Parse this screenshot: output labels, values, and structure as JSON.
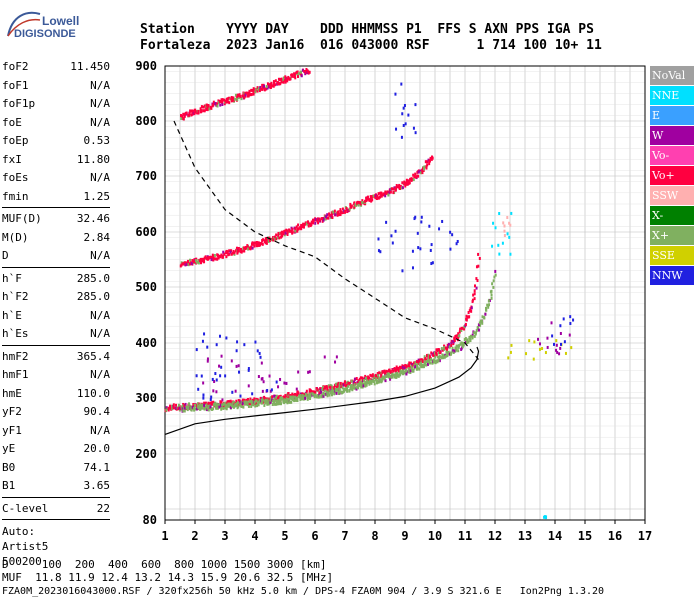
{
  "logo": {
    "line1": "Lowell",
    "line2": "DIGISONDE"
  },
  "header": {
    "row1": "Station    YYYY DAY    DDD HHMMSS P1  FFS S AXN PPS IGA PS",
    "row2": "Fortaleza  2023 Jan16  016 043000 RSF      1 714 100 10+ 11"
  },
  "params": [
    {
      "group": [
        {
          "k": "foF2",
          "v": "11.450"
        },
        {
          "k": "foF1",
          "v": "N/A"
        },
        {
          "k": "foF1p",
          "v": "N/A"
        },
        {
          "k": "foE",
          "v": "N/A"
        },
        {
          "k": "foEp",
          "v": "0.53"
        },
        {
          "k": "fxI",
          "v": "11.80"
        },
        {
          "k": "foEs",
          "v": "N/A"
        },
        {
          "k": "fmin",
          "v": "1.25"
        }
      ]
    },
    {
      "group": [
        {
          "k": "MUF(D)",
          "v": "32.46"
        },
        {
          "k": "M(D)",
          "v": "2.84"
        },
        {
          "k": "D",
          "v": "N/A"
        }
      ]
    },
    {
      "group": [
        {
          "k": "h`F",
          "v": "285.0"
        },
        {
          "k": "h`F2",
          "v": "285.0"
        },
        {
          "k": "h`E",
          "v": "N/A"
        },
        {
          "k": "h`Es",
          "v": "N/A"
        }
      ]
    },
    {
      "group": [
        {
          "k": "hmF2",
          "v": "365.4"
        },
        {
          "k": "hmF1",
          "v": "N/A"
        },
        {
          "k": "hmE",
          "v": "110.0"
        },
        {
          "k": "yF2",
          "v": "90.4"
        },
        {
          "k": "yF1",
          "v": "N/A"
        },
        {
          "k": "yE",
          "v": "20.0"
        },
        {
          "k": "B0",
          "v": "74.1"
        },
        {
          "k": "B1",
          "v": "3.65"
        }
      ]
    },
    {
      "group": [
        {
          "k": "C-level",
          "v": "22"
        }
      ]
    }
  ],
  "auto": [
    "Auto:",
    "Artist5",
    "500200"
  ],
  "legend": [
    {
      "label": "NoVal",
      "color": "#a0a0a0"
    },
    {
      "label": "NNE",
      "color": "#00e0ff"
    },
    {
      "label": "E",
      "color": "#3aa0ff"
    },
    {
      "label": "W",
      "color": "#a000a0"
    },
    {
      "label": "Vo-",
      "color": "#ff40b0"
    },
    {
      "label": "Vo+",
      "color": "#ff0040"
    },
    {
      "label": "SSW",
      "color": "#ffb0b0"
    },
    {
      "label": "X-",
      "color": "#008000"
    },
    {
      "label": "X+",
      "color": "#80b060"
    },
    {
      "label": "SSE",
      "color": "#d0d000"
    },
    {
      "label": "NNW",
      "color": "#2020e0"
    }
  ],
  "footer": {
    "row1": "D     100  200  400  600  800 1000 1500 3000 [km]",
    "row2": "MUF  11.8 11.9 12.4 13.2 14.3 15.9 20.6 32.5 [MHz]",
    "row3": "FZA0M_2023016043000.RSF / 320fx256h 50 kHz 5.0 km / DPS-4 FZA0M 904 / 3.9 S 321.6 E   Ion2Png 1.3.20"
  },
  "chart_data": {
    "type": "scatter",
    "x_ticks": [
      "1",
      "2",
      "3",
      "4",
      "5",
      "6",
      "7",
      "8",
      "9",
      "10",
      "11",
      "12",
      "13",
      "14",
      "15",
      "16",
      "17"
    ],
    "y_ticks": [
      "80",
      "200",
      "300",
      "400",
      "500",
      "600",
      "700",
      "800",
      "900"
    ],
    "xlim": [
      1,
      17
    ],
    "y_axis_scale": "nonlinear (log-like)",
    "grid": true,
    "series": [
      {
        "name": "Vo+",
        "color": "#ff0040",
        "trace": "O-mode F2 trace",
        "x": [
          1.0,
          2.0,
          3.0,
          4.0,
          5.0,
          6.0,
          7.0,
          8.0,
          9.0,
          9.5,
          10.0,
          10.5,
          10.8,
          11.0,
          11.2,
          11.35,
          11.45
        ],
        "y": [
          285,
          288,
          292,
          297,
          305,
          315,
          328,
          342,
          360,
          370,
          385,
          400,
          420,
          440,
          470,
          510,
          570
        ]
      },
      {
        "name": "X+",
        "color": "#80b060",
        "trace": "X-mode F2 trace",
        "x": [
          1.5,
          3.0,
          5.0,
          7.0,
          9.0,
          10.0,
          10.8,
          11.3,
          11.6,
          11.85,
          12.0
        ],
        "y": [
          283,
          288,
          298,
          318,
          350,
          372,
          395,
          420,
          450,
          490,
          540
        ]
      },
      {
        "name": "Vo+",
        "color": "#ff0040",
        "trace": "second-hop trace",
        "x": [
          1.5,
          2.5,
          3.5,
          4.5,
          5.5,
          6.5,
          7.5,
          8.5,
          9.0,
          9.5,
          9.9
        ],
        "y": [
          545,
          555,
          570,
          590,
          612,
          632,
          655,
          675,
          690,
          710,
          740
        ]
      },
      {
        "name": "Vo+",
        "color": "#ff0040",
        "trace": "third-hop trace",
        "x": [
          1.5,
          2.5,
          3.5,
          4.5,
          5.3,
          5.8
        ],
        "y": [
          810,
          830,
          848,
          868,
          885,
          895
        ]
      }
    ],
    "profiles": [
      {
        "trace": "solid profile",
        "x": [
          1.0,
          2.0,
          3.0,
          4.0,
          5.0,
          6.0,
          7.0,
          8.0,
          9.0,
          10.0,
          10.8,
          11.2,
          11.4,
          11.45,
          11.4
        ],
        "y": [
          235,
          254,
          262,
          268,
          274,
          280,
          287,
          294,
          303,
          318,
          338,
          355,
          370,
          385,
          393
        ]
      },
      {
        "trace": "dashed profile",
        "dashed": true,
        "x": [
          1.3,
          2.0,
          3.0,
          4.0,
          5.0,
          6.0,
          7.0,
          8.0,
          9.0,
          10.0,
          11.0,
          11.45
        ],
        "y": [
          800,
          715,
          640,
          600,
          575,
          555,
          515,
          480,
          445,
          425,
          400,
          370
        ]
      }
    ],
    "clusters": [
      {
        "color": "#a000a0",
        "x": [
          2,
          7
        ],
        "y": [
          295,
          380
        ]
      },
      {
        "color": "#2020e0",
        "x": [
          2,
          5
        ],
        "y": [
          300,
          420
        ]
      },
      {
        "color": "#2020e0",
        "x": [
          8,
          10.8
        ],
        "y": [
          530,
          630
        ]
      },
      {
        "color": "#2020e0",
        "x": [
          8.6,
          9.4
        ],
        "y": [
          770,
          880
        ]
      },
      {
        "color": "#00e0ff",
        "x": [
          11.8,
          12.6
        ],
        "y": [
          560,
          640
        ]
      },
      {
        "color": "#ffb0b0",
        "x": [
          12.2,
          12.5
        ],
        "y": [
          590,
          630
        ]
      },
      {
        "color": "#d0d000",
        "x": [
          12.2,
          14.6
        ],
        "y": [
          370,
          410
        ]
      },
      {
        "color": "#a000a0",
        "x": [
          13.4,
          14.7
        ],
        "y": [
          380,
          440
        ]
      },
      {
        "color": "#2020e0",
        "x": [
          13.8,
          14.6
        ],
        "y": [
          400,
          450
        ]
      },
      {
        "color": "#00e0ff",
        "x": [
          13.6,
          13.7
        ],
        "y": [
          87,
          89
        ]
      }
    ]
  }
}
